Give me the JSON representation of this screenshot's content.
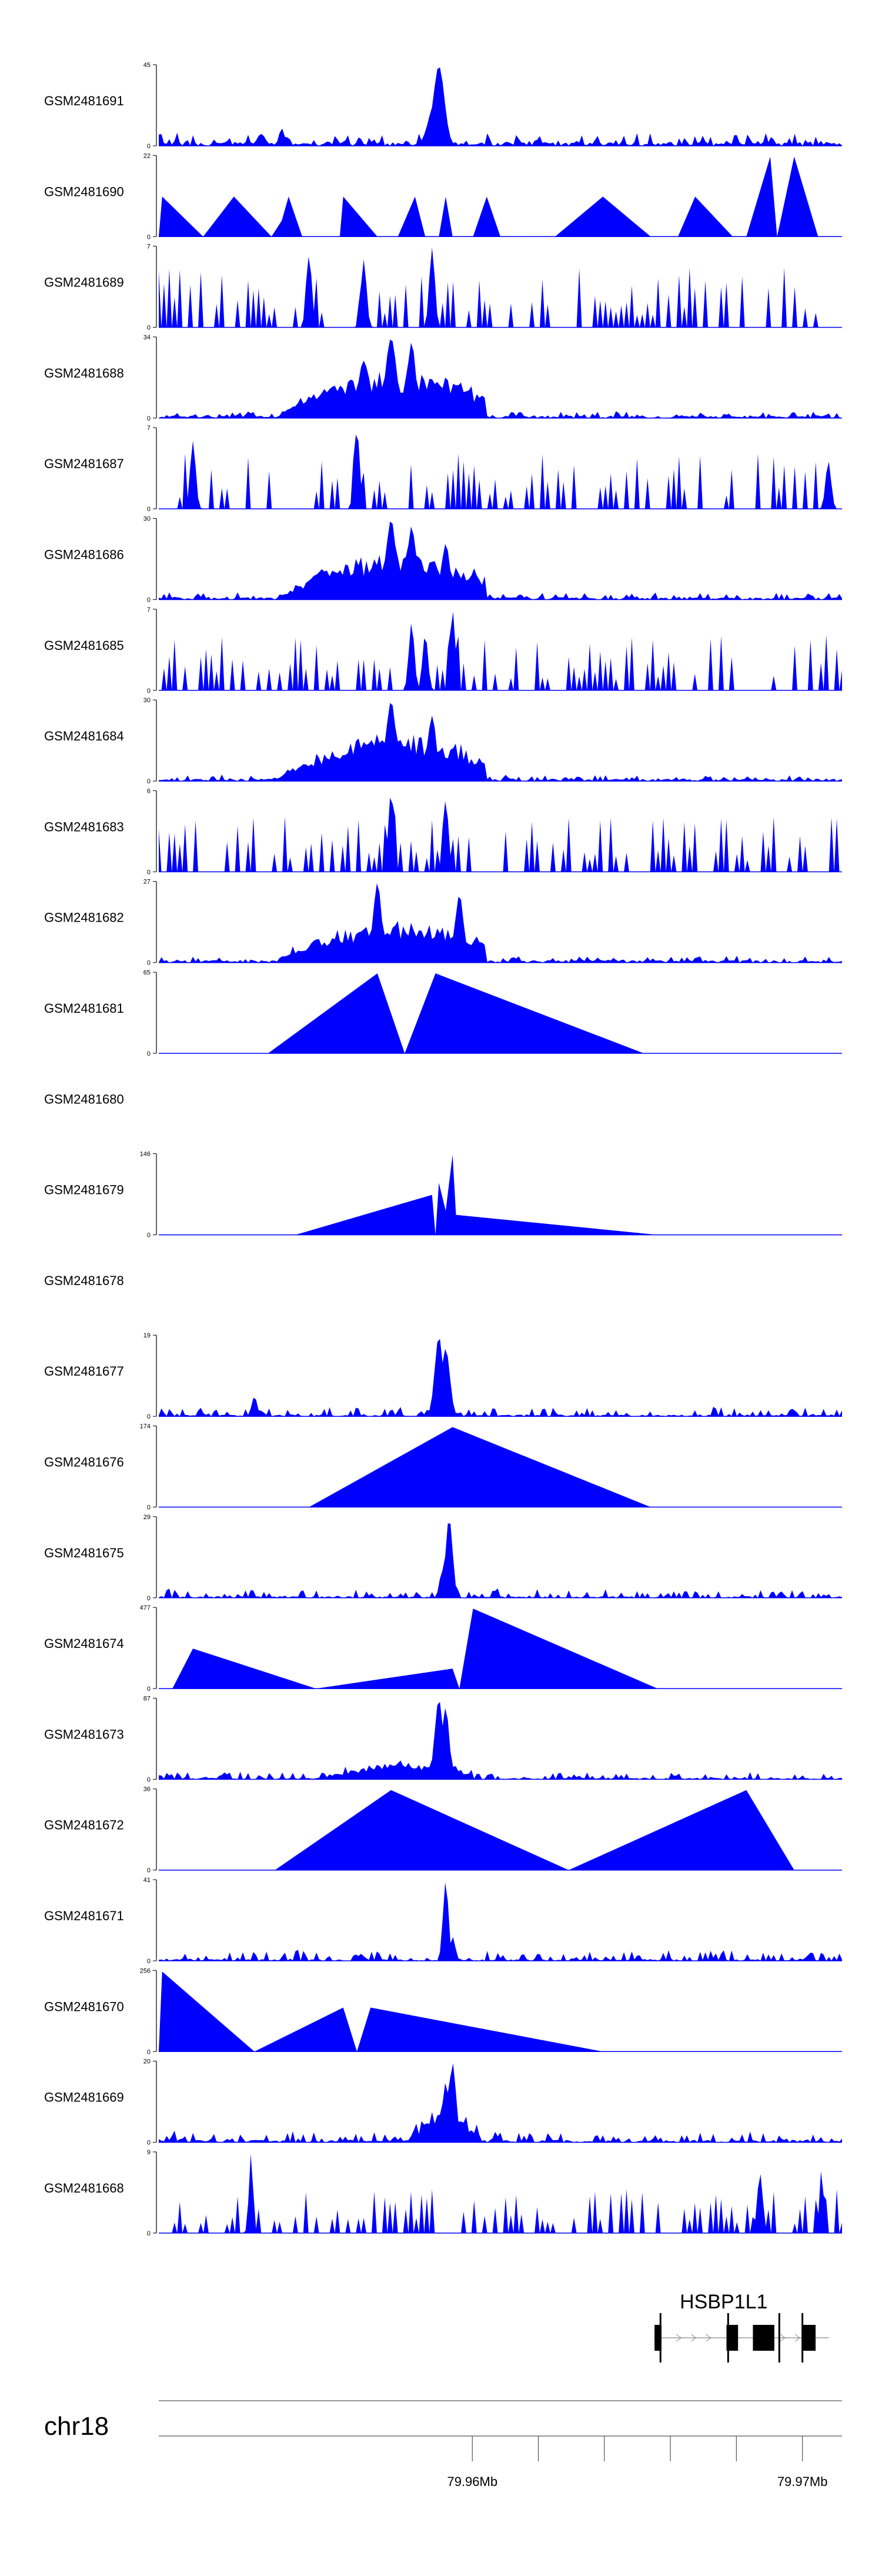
{
  "chart_data": {
    "type": "area",
    "title": "",
    "colors": {
      "signal": "#0000ff",
      "axis": "#000000",
      "gene": "#000000",
      "ruler": "#555555"
    },
    "x_domain_mb": [
      79.9505,
      79.9712
    ],
    "tracks": [
      {
        "name": "GSM2481691",
        "ymax_label": "45",
        "ymin_label": "0",
        "ymax": 45,
        "shape": "peaky",
        "seed": 1,
        "base": 0.05,
        "noise": 0.12,
        "peaks": [
          {
            "x": 0.41,
            "h": 1.0,
            "w": 0.008
          },
          {
            "x": 0.405,
            "h": 0.55,
            "w": 0.01
          },
          {
            "x": 0.18,
            "h": 0.22,
            "w": 0.004
          },
          {
            "x": 0.15,
            "h": 0.15,
            "w": 0.006
          }
        ]
      },
      {
        "name": "GSM2481690",
        "ymax_label": "22",
        "ymin_label": "0",
        "ymax": 22,
        "shape": "tri",
        "points": [
          [
            0.0,
            0
          ],
          [
            0.005,
            0.5
          ],
          [
            0.065,
            0
          ],
          [
            0.11,
            0.5
          ],
          [
            0.165,
            0
          ],
          [
            0.18,
            0.2
          ],
          [
            0.19,
            0.5
          ],
          [
            0.21,
            0
          ],
          [
            0.265,
            0
          ],
          [
            0.27,
            0.5
          ],
          [
            0.32,
            0
          ],
          [
            0.35,
            0
          ],
          [
            0.375,
            0.5
          ],
          [
            0.39,
            0
          ],
          [
            0.41,
            0
          ],
          [
            0.42,
            0.5
          ],
          [
            0.43,
            0
          ],
          [
            0.46,
            0
          ],
          [
            0.48,
            0.5
          ],
          [
            0.5,
            0
          ],
          [
            0.55,
            0
          ],
          [
            0.58,
            0
          ],
          [
            0.65,
            0.5
          ],
          [
            0.72,
            0
          ],
          [
            0.76,
            0
          ],
          [
            0.785,
            0.5
          ],
          [
            0.84,
            0
          ],
          [
            0.86,
            0
          ],
          [
            0.895,
            1.0
          ],
          [
            0.905,
            0
          ],
          [
            0.93,
            1.0
          ],
          [
            0.965,
            0
          ],
          [
            1.0,
            0
          ]
        ]
      },
      {
        "name": "GSM2481689",
        "ymax_label": "7",
        "ymin_label": "0",
        "ymax": 7,
        "shape": "spiky",
        "seed": 3,
        "density": 0.55,
        "amp": 0.75,
        "from": 0.0,
        "to": 0.98,
        "peaks": [
          {
            "x": 0.4,
            "h": 1.0,
            "w": 0.004
          },
          {
            "x": 0.3,
            "h": 0.85,
            "w": 0.004
          },
          {
            "x": 0.22,
            "h": 0.9,
            "w": 0.004
          }
        ]
      },
      {
        "name": "GSM2481688",
        "ymax_label": "34",
        "ymin_label": "0",
        "ymax": 34,
        "shape": "peaky",
        "seed": 4,
        "base": 0.03,
        "noise": 0.06,
        "bump": {
          "from": 0.12,
          "to": 0.48,
          "h": 0.55,
          "c": 0.35
        },
        "peaks": [
          {
            "x": 0.34,
            "h": 1.0,
            "w": 0.008
          },
          {
            "x": 0.37,
            "h": 0.95,
            "w": 0.006
          },
          {
            "x": 0.3,
            "h": 0.72,
            "w": 0.008
          }
        ]
      },
      {
        "name": "GSM2481687",
        "ymax_label": "7",
        "ymin_label": "0",
        "ymax": 7,
        "shape": "spiky",
        "seed": 5,
        "density": 0.5,
        "amp": 0.7,
        "from": 0.0,
        "to": 1.0,
        "peaks": [
          {
            "x": 0.29,
            "h": 1.0,
            "w": 0.004
          },
          {
            "x": 0.05,
            "h": 0.85,
            "w": 0.004
          },
          {
            "x": 0.98,
            "h": 0.6,
            "w": 0.004
          }
        ]
      },
      {
        "name": "GSM2481686",
        "ymax_label": "30",
        "ymin_label": "0",
        "ymax": 30,
        "shape": "peaky",
        "seed": 6,
        "base": 0.03,
        "noise": 0.07,
        "bump": {
          "from": 0.12,
          "to": 0.48,
          "h": 0.55,
          "c": 0.35
        },
        "peaks": [
          {
            "x": 0.34,
            "h": 1.0,
            "w": 0.007
          },
          {
            "x": 0.37,
            "h": 0.92,
            "w": 0.006
          },
          {
            "x": 0.42,
            "h": 0.7,
            "w": 0.006
          }
        ]
      },
      {
        "name": "GSM2481685",
        "ymax_label": "7",
        "ymin_label": "0",
        "ymax": 7,
        "shape": "spiky",
        "seed": 7,
        "density": 0.5,
        "amp": 0.7,
        "from": 0.0,
        "to": 1.0,
        "peaks": [
          {
            "x": 0.43,
            "h": 1.0,
            "w": 0.004
          },
          {
            "x": 0.37,
            "h": 0.85,
            "w": 0.004
          },
          {
            "x": 0.39,
            "h": 0.7,
            "w": 0.004
          }
        ]
      },
      {
        "name": "GSM2481684",
        "ymax_label": "30",
        "ymin_label": "0",
        "ymax": 30,
        "shape": "peaky",
        "seed": 8,
        "base": 0.03,
        "noise": 0.06,
        "bump": {
          "from": 0.12,
          "to": 0.48,
          "h": 0.55,
          "c": 0.35
        },
        "peaks": [
          {
            "x": 0.34,
            "h": 1.0,
            "w": 0.007
          },
          {
            "x": 0.4,
            "h": 0.82,
            "w": 0.006
          }
        ]
      },
      {
        "name": "GSM2481683",
        "ymax_label": "6",
        "ymin_label": "0",
        "ymax": 6,
        "shape": "spiky",
        "seed": 9,
        "density": 0.55,
        "amp": 0.7,
        "from": 0.0,
        "to": 1.0,
        "peaks": [
          {
            "x": 0.34,
            "h": 1.0,
            "w": 0.004
          },
          {
            "x": 0.42,
            "h": 0.9,
            "w": 0.004
          }
        ]
      },
      {
        "name": "GSM2481682",
        "ymax_label": "27",
        "ymin_label": "0",
        "ymax": 27,
        "shape": "peaky",
        "seed": 10,
        "base": 0.03,
        "noise": 0.06,
        "bump": {
          "from": 0.12,
          "to": 0.48,
          "h": 0.5,
          "c": 0.35
        },
        "peaks": [
          {
            "x": 0.32,
            "h": 1.0,
            "w": 0.006
          },
          {
            "x": 0.44,
            "h": 0.85,
            "w": 0.006
          }
        ]
      },
      {
        "name": "GSM2481681",
        "ymax_label": "65",
        "ymin_label": "0",
        "ymax": 65,
        "shape": "tri",
        "points": [
          [
            0.16,
            0
          ],
          [
            0.32,
            1.0
          ],
          [
            0.36,
            0
          ],
          [
            0.405,
            1.0
          ],
          [
            0.71,
            0
          ]
        ]
      },
      {
        "name": "GSM2481680",
        "ymax_label": "",
        "ymin_label": "",
        "ymax": 0,
        "shape": "empty"
      },
      {
        "name": "GSM2481679",
        "ymax_label": "146",
        "ymin_label": "0",
        "ymax": 146,
        "shape": "tri",
        "points": [
          [
            0.2,
            0
          ],
          [
            0.4,
            0.5
          ],
          [
            0.405,
            0
          ],
          [
            0.41,
            0.65
          ],
          [
            0.42,
            0.3
          ],
          [
            0.43,
            1.0
          ],
          [
            0.435,
            0.25
          ],
          [
            0.73,
            0
          ]
        ]
      },
      {
        "name": "GSM2481678",
        "ymax_label": "",
        "ymin_label": "",
        "ymax": 0,
        "shape": "empty"
      },
      {
        "name": "GSM2481677",
        "ymax_label": "19",
        "ymin_label": "0",
        "ymax": 19,
        "shape": "peaky",
        "seed": 13,
        "base": 0.02,
        "noise": 0.1,
        "peaks": [
          {
            "x": 0.41,
            "h": 1.0,
            "w": 0.006
          },
          {
            "x": 0.42,
            "h": 0.85,
            "w": 0.006
          },
          {
            "x": 0.14,
            "h": 0.25,
            "w": 0.004
          }
        ]
      },
      {
        "name": "GSM2481676",
        "ymax_label": "174",
        "ymin_label": "0",
        "ymax": 174,
        "shape": "tri",
        "points": [
          [
            0.22,
            0
          ],
          [
            0.43,
            1.0
          ],
          [
            0.72,
            0
          ]
        ]
      },
      {
        "name": "GSM2481675",
        "ymax_label": "29",
        "ymin_label": "0",
        "ymax": 29,
        "shape": "peaky",
        "seed": 15,
        "base": 0.02,
        "noise": 0.1,
        "peaks": [
          {
            "x": 0.425,
            "h": 1.0,
            "w": 0.005
          },
          {
            "x": 0.415,
            "h": 0.35,
            "w": 0.004
          }
        ]
      },
      {
        "name": "GSM2481674",
        "ymax_label": "477",
        "ymin_label": "0",
        "ymax": 477,
        "shape": "tri",
        "points": [
          [
            0.02,
            0
          ],
          [
            0.05,
            0.5
          ],
          [
            0.23,
            0
          ],
          [
            0.43,
            0.25
          ],
          [
            0.44,
            0
          ],
          [
            0.46,
            1.0
          ],
          [
            0.73,
            0
          ]
        ]
      },
      {
        "name": "GSM2481673",
        "ymax_label": "87",
        "ymin_label": "0",
        "ymax": 87,
        "shape": "peaky",
        "seed": 17,
        "base": 0.02,
        "noise": 0.08,
        "bump": {
          "from": 0.22,
          "to": 0.46,
          "h": 0.2,
          "c": 0.36
        },
        "peaks": [
          {
            "x": 0.41,
            "h": 1.0,
            "w": 0.006
          },
          {
            "x": 0.42,
            "h": 0.9,
            "w": 0.005
          }
        ]
      },
      {
        "name": "GSM2481672",
        "ymax_label": "36",
        "ymin_label": "0",
        "ymax": 36,
        "shape": "tri",
        "points": [
          [
            0.17,
            0
          ],
          [
            0.34,
            1.0
          ],
          [
            0.6,
            0
          ],
          [
            0.86,
            1.0
          ],
          [
            0.93,
            0
          ]
        ]
      },
      {
        "name": "GSM2481671",
        "ymax_label": "41",
        "ymin_label": "0",
        "ymax": 41,
        "shape": "peaky",
        "seed": 19,
        "base": 0.02,
        "noise": 0.12,
        "peaks": [
          {
            "x": 0.42,
            "h": 1.0,
            "w": 0.004
          },
          {
            "x": 0.43,
            "h": 0.3,
            "w": 0.004
          }
        ]
      },
      {
        "name": "GSM2481670",
        "ymax_label": "256",
        "ymin_label": "0",
        "ymax": 256,
        "shape": "tri",
        "points": [
          [
            0.0,
            0
          ],
          [
            0.005,
            1.0
          ],
          [
            0.14,
            0
          ],
          [
            0.27,
            0.55
          ],
          [
            0.29,
            0
          ],
          [
            0.31,
            0.55
          ],
          [
            0.65,
            0
          ]
        ]
      },
      {
        "name": "GSM2481669",
        "ymax_label": "20",
        "ymin_label": "0",
        "ymax": 20,
        "shape": "peaky",
        "seed": 21,
        "base": 0.03,
        "noise": 0.12,
        "bump": {
          "from": 0.36,
          "to": 0.47,
          "h": 0.35,
          "c": 0.42
        },
        "peaks": [
          {
            "x": 0.43,
            "h": 1.0,
            "w": 0.005
          },
          {
            "x": 0.42,
            "h": 0.75,
            "w": 0.005
          }
        ]
      },
      {
        "name": "GSM2481668",
        "ymax_label": "9",
        "ymin_label": "0",
        "ymax": 9,
        "shape": "spiky",
        "seed": 22,
        "density": 0.6,
        "amp": 0.55,
        "from": 0.02,
        "to": 1.0,
        "peaks": [
          {
            "x": 0.135,
            "h": 1.0,
            "w": 0.003
          },
          {
            "x": 0.88,
            "h": 0.75,
            "w": 0.004
          },
          {
            "x": 0.97,
            "h": 0.8,
            "w": 0.003
          }
        ]
      }
    ],
    "gene": {
      "name": "HSBP1L1",
      "start_mb": 79.9655,
      "end_mb": 79.9708,
      "strand": "+",
      "exons": [
        [
          79.96552,
          79.96573
        ],
        [
          79.9677,
          79.96805
        ],
        [
          79.9685,
          79.96915
        ],
        [
          79.97,
          79.9704
        ]
      ],
      "marker_lines_mb": [
        79.9657,
        79.96775,
        79.9693,
        79.97
      ]
    },
    "ideogram": {
      "chromosome": "chr18"
    },
    "ruler": {
      "ticks_mb": [
        79.96,
        79.962,
        79.964,
        79.966,
        79.968,
        79.97
      ],
      "labeled_ticks": [
        {
          "mb": 79.96,
          "label": "79.96Mb"
        },
        {
          "mb": 79.97,
          "label": "79.97Mb"
        }
      ]
    }
  }
}
